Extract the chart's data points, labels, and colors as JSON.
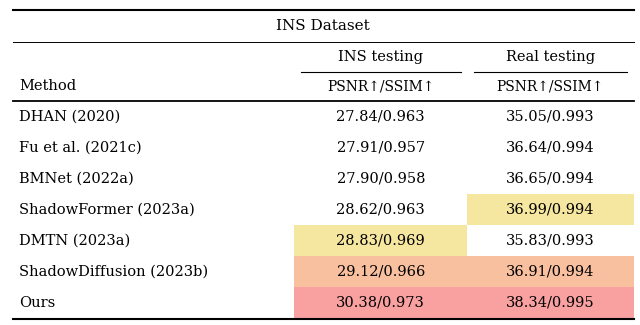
{
  "title": "INS Dataset",
  "col_header": "PSNR↑/SSIM↑",
  "methods": [
    "DHAN (2020)",
    "Fu et al. (2021c)",
    "BMNet (2022a)",
    "ShadowFormer (2023a)",
    "DMTN (2023a)",
    "ShadowDiffusion (2023b)",
    "Ours"
  ],
  "ins_values": [
    "27.84/0.963",
    "27.91/0.957",
    "27.90/0.958",
    "28.62/0.963",
    "28.83/0.969",
    "29.12/0.966",
    "30.38/0.973"
  ],
  "real_values": [
    "35.05/0.993",
    "36.64/0.994",
    "36.65/0.994",
    "36.99/0.994",
    "35.83/0.993",
    "36.91/0.994",
    "38.34/0.995"
  ],
  "ins_highlight": {
    "4": "#f5e6a0",
    "5": "#f9c0a0",
    "6": "#f9a0a0"
  },
  "real_highlight": {
    "3": "#f5e6a0",
    "5": "#f9c0a0",
    "6": "#f9a0a0"
  },
  "bg_color": "#ffffff",
  "font_size": 10.5
}
